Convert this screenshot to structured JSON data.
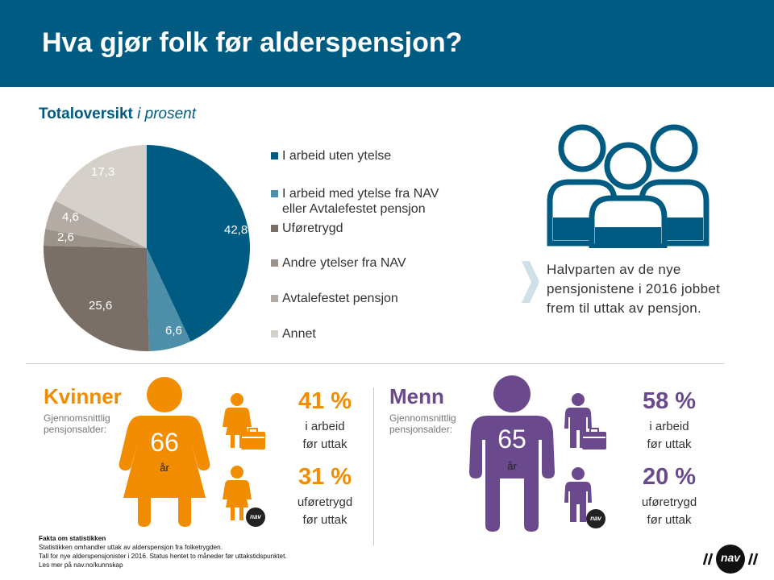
{
  "header": {
    "title": "Hva gjør folk før alderspensjon?"
  },
  "chart_heading": {
    "bold": "Totaloversikt",
    "italic": "i prosent"
  },
  "chart_data": {
    "type": "pie",
    "title": "Totaloversikt i prosent",
    "series": [
      {
        "name": "I arbeid uten ytelse",
        "value": 42.8,
        "label": "42,8",
        "color": "#005b82"
      },
      {
        "name": "I arbeid med ytelse fra NAV eller Avtalefestet pensjon",
        "value": 6.6,
        "label": "6,6",
        "color": "#4d8ea8"
      },
      {
        "name": "Uføretrygd",
        "value": 25.6,
        "label": "25,6",
        "color": "#7a6f66"
      },
      {
        "name": "Andre ytelser fra NAV",
        "value": 2.6,
        "label": "2,6",
        "color": "#9c938a"
      },
      {
        "name": "Avtalefestet pensjon",
        "value": 4.6,
        "label": "4,6",
        "color": "#b4aca4"
      },
      {
        "name": "Annet",
        "value": 17.3,
        "label": "17,3",
        "color": "#d5d0ca"
      }
    ],
    "legend_items": [
      {
        "line1": "I arbeid uten ytelse",
        "line2": ""
      },
      {
        "line1": "I arbeid med ytelse fra NAV",
        "line2": "eller Avtalefestet pensjon"
      },
      {
        "line1": "Uføretrygd",
        "line2": ""
      },
      {
        "line1": "Andre ytelser fra NAV",
        "line2": ""
      },
      {
        "line1": "Avtalefestet pensjon",
        "line2": ""
      },
      {
        "line1": "Annet",
        "line2": ""
      }
    ],
    "legend_position": "right"
  },
  "callout": {
    "text": "Halvparten av de nye pensjonistene i 2016 jobbet frem til uttak av pensjon."
  },
  "women": {
    "title": "Kvinner",
    "sub_label_1": "Gjennomsnittlig",
    "sub_label_2": "pensjonsalder:",
    "age": "66",
    "age_unit": "år",
    "stat1_value": "41 %",
    "stat1_line1": "i arbeid",
    "stat1_line2": "før uttak",
    "stat2_value": "31 %",
    "stat2_line1": "uføretrygd",
    "stat2_line2": "før uttak",
    "color": "#f28c00"
  },
  "men": {
    "title": "Menn",
    "sub_label_1": "Gjennomsnittlig",
    "sub_label_2": "pensjonsalder:",
    "age": "65",
    "age_unit": "år",
    "stat1_value": "58 %",
    "stat1_line1": "i arbeid",
    "stat1_line2": "før uttak",
    "stat2_value": "20 %",
    "stat2_line1": "uføretrygd",
    "stat2_line2": "før uttak",
    "color": "#6a4a8c"
  },
  "nav_badge": {
    "text": "nav"
  },
  "facts": {
    "title": "Fakta om statistikken",
    "line1": "Statistikken omhandler uttak av alderspensjon fra folketrygden.",
    "line2": "Tall for nye alderspensjonister i 2016. Status hentet to måneder før uttakstidspunktet.",
    "line3": "Les mer på nav.no/kunnskap"
  },
  "logo": {
    "text": "nav"
  }
}
